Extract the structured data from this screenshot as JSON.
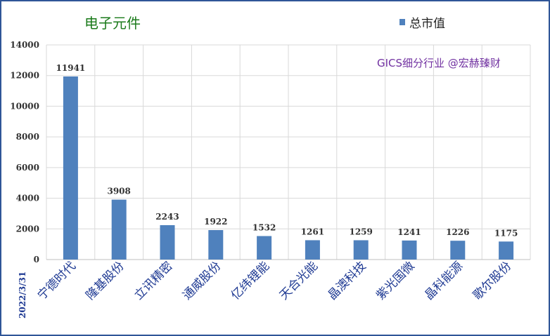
{
  "chart_data": {
    "type": "bar",
    "title": "电子元件",
    "legend": "总市值",
    "watermark": "GICS细分行业 @宏赫臻财",
    "date": "2022/3/31",
    "categories": [
      "宁德时代",
      "隆基股份",
      "立讯精密",
      "通威股份",
      "亿纬锂能",
      "天合光能",
      "晶澳科技",
      "紫光国微",
      "晶科能源",
      "歌尔股份"
    ],
    "series": [
      {
        "name": "总市值",
        "values": [
          11941,
          3908,
          2243,
          1922,
          1532,
          1261,
          1259,
          1241,
          1226,
          1175
        ]
      }
    ],
    "y_ticks": [
      "0",
      "2000",
      "4000",
      "6000",
      "8000",
      "10000",
      "12000",
      "14000"
    ],
    "ylim": [
      0,
      14000
    ],
    "grid": true,
    "legend_position": "top-right",
    "bar_color": "#4f81bd"
  }
}
